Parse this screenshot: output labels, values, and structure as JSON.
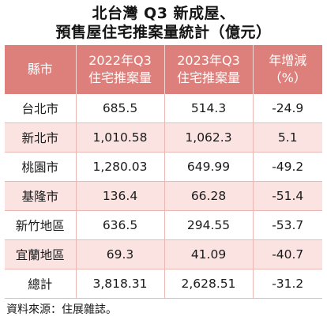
{
  "title_line1": "北台灣 Q3 新成屋、",
  "title_line2": "預售屋住宅推案量統計（億元）",
  "chart_data": {
    "type": "table",
    "columns": [
      {
        "label_line1": "縣市",
        "label_line2": ""
      },
      {
        "label_line1": "2022年Q3",
        "label_line2": "住宅推案量"
      },
      {
        "label_line1": "2023年Q3",
        "label_line2": "住宅推案量"
      },
      {
        "label_line1": "年增減",
        "label_line2": "（%）"
      }
    ],
    "rows": [
      {
        "city": "台北市",
        "q3_2022": "685.5",
        "q3_2023": "514.3",
        "change": "-24.9"
      },
      {
        "city": "新北市",
        "q3_2022": "1,010.58",
        "q3_2023": "1,062.3",
        "change": "5.1"
      },
      {
        "city": "桃園市",
        "q3_2022": "1,280.03",
        "q3_2023": "649.99",
        "change": "-49.2"
      },
      {
        "city": "基隆市",
        "q3_2022": "136.4",
        "q3_2023": "66.28",
        "change": "-51.4"
      },
      {
        "city": "新竹地區",
        "q3_2022": "636.5",
        "q3_2023": "294.55",
        "change": "-53.7"
      },
      {
        "city": "宜蘭地區",
        "q3_2022": "69.3",
        "q3_2023": "41.09",
        "change": "-40.7"
      },
      {
        "city": "總計",
        "q3_2022": "3,818.31",
        "q3_2023": "2,628.51",
        "change": "-31.2"
      }
    ]
  },
  "source": "資料來源：住展雜誌。",
  "colors": {
    "header_bg": "#dd7f7b",
    "stripe_bg": "#fbe3e2",
    "grid_line": "#e9b8b5"
  }
}
